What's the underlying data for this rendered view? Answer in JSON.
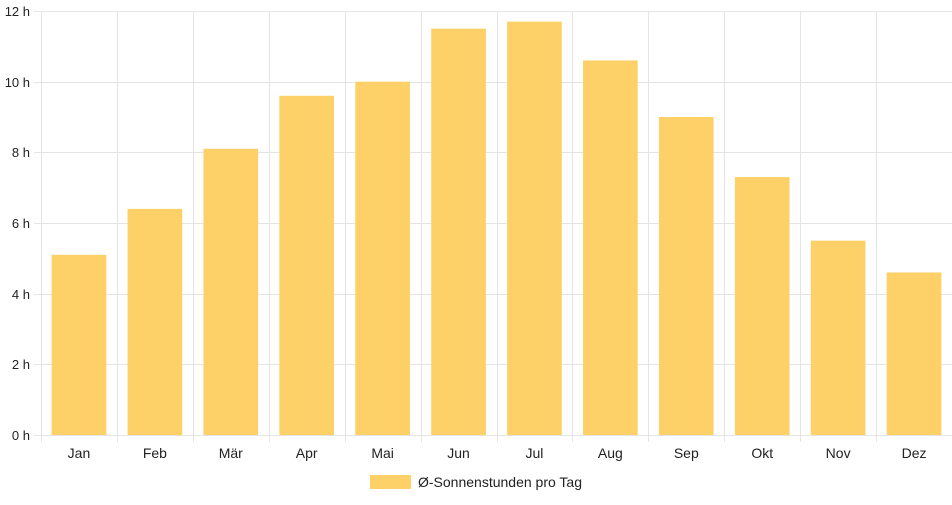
{
  "chart_data": {
    "type": "bar",
    "categories": [
      "Jan",
      "Feb",
      "Mär",
      "Apr",
      "Mai",
      "Jun",
      "Jul",
      "Aug",
      "Sep",
      "Okt",
      "Nov",
      "Dez"
    ],
    "series": [
      {
        "name": "Ø-Sonnenstunden pro Tag",
        "values": [
          5.1,
          6.4,
          8.1,
          9.6,
          10.0,
          11.5,
          11.7,
          10.6,
          9.0,
          7.3,
          5.5,
          4.6
        ],
        "color": "#fdd068"
      }
    ],
    "ylim": [
      0,
      12
    ],
    "yticks": [
      0,
      2,
      4,
      6,
      8,
      10,
      12
    ],
    "ytick_suffix": " h",
    "grid": true,
    "legend_position": "bottom"
  }
}
